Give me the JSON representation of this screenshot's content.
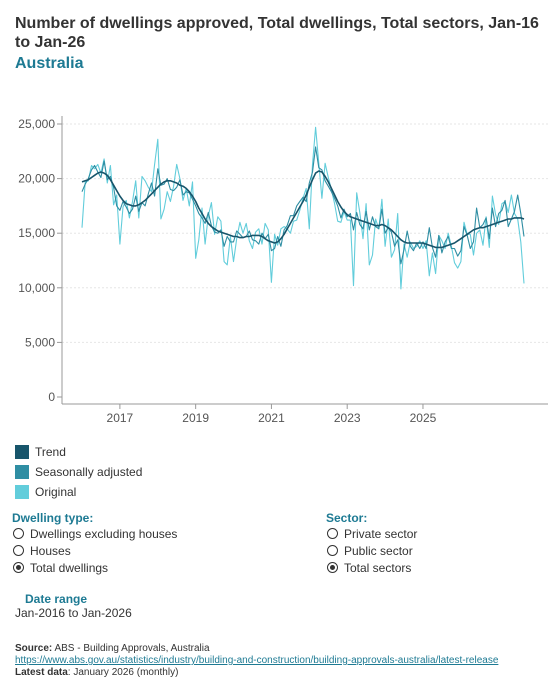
{
  "header": {
    "title": "Number of dwellings approved, Total dwellings, Total sectors, Jan-16 to Jan-26",
    "subtitle": "Australia"
  },
  "legend": [
    {
      "label": "Trend",
      "color": "#17556b"
    },
    {
      "label": "Seasonally adjusted",
      "color": "#2f8ea3"
    },
    {
      "label": "Original",
      "color": "#62cddb"
    }
  ],
  "filters": {
    "dwelling_type": {
      "label": "Dwelling type:",
      "options": [
        "Dwellings excluding houses",
        "Houses",
        "Total dwellings"
      ],
      "selected": "Total dwellings"
    },
    "sector": {
      "label": "Sector:",
      "options": [
        "Private sector",
        "Public sector",
        "Total sectors"
      ],
      "selected": "Total sectors"
    }
  },
  "date_range": {
    "label": "Date range",
    "value": "Jan-2016 to Jan-2026"
  },
  "footer": {
    "source_label": "Source:",
    "source_text": " ABS - Building Approvals, Australia",
    "url": "https://www.abs.gov.au/statistics/industry/building-and-construction/building-approvals-australia/latest-release",
    "latest_label": "Latest data",
    "latest_text": ": January 2026 (monthly)"
  },
  "chart_data": {
    "type": "line",
    "x_start": "2016-01",
    "x_end": "2026-01",
    "ylim": [
      0,
      25000
    ],
    "yticks": [
      0,
      5000,
      10000,
      15000,
      20000,
      25000
    ],
    "ytick_labels": [
      "0",
      "5,000",
      "10,000",
      "15,000",
      "20,000",
      "25,000"
    ],
    "xticks": [
      "2017",
      "2019",
      "2021",
      "2023",
      "2025"
    ],
    "series": [
      {
        "name": "Trend",
        "color": "#17556b",
        "width": 1.6,
        "values": [
          19700,
          19800,
          19900,
          20100,
          20300,
          20500,
          20600,
          20500,
          20300,
          19900,
          19400,
          18900,
          18400,
          18000,
          17700,
          17600,
          17500,
          17500,
          17600,
          17800,
          18000,
          18300,
          18600,
          18900,
          19200,
          19500,
          19700,
          19800,
          19800,
          19700,
          19600,
          19400,
          19300,
          19100,
          18800,
          18400,
          17900,
          17300,
          16800,
          16300,
          15900,
          15600,
          15400,
          15200,
          15100,
          15000,
          14900,
          14800,
          14700,
          14700,
          14600,
          14600,
          14700,
          14700,
          14800,
          14800,
          14800,
          14700,
          14500,
          14300,
          14200,
          14100,
          14200,
          14500,
          14900,
          15400,
          15900,
          16400,
          16900,
          17400,
          17900,
          18500,
          19200,
          19900,
          20500,
          20700,
          20600,
          20200,
          19700,
          19100,
          18500,
          17900,
          17400,
          17000,
          16700,
          16500,
          16400,
          16300,
          16200,
          16100,
          16000,
          15900,
          15800,
          15700,
          15700,
          15800,
          15700,
          15500,
          15300,
          15000,
          14700,
          14400,
          14200,
          14100,
          14100,
          14100,
          14100,
          14100,
          14100,
          14000,
          13900,
          13800,
          13700,
          13700,
          13700,
          13800,
          13900,
          14000,
          14100,
          14300,
          14500,
          14700,
          14900,
          15100,
          15300,
          15400,
          15500,
          15500,
          15600,
          15700,
          15800,
          15900,
          16000,
          16100,
          16200,
          16300,
          16300,
          16400,
          16400,
          16400,
          16300
        ]
      },
      {
        "name": "Seasonally adjusted",
        "color": "#2f8ea3",
        "width": 1.1,
        "values": [
          18800,
          19500,
          20000,
          20800,
          21200,
          20600,
          20100,
          21600,
          19900,
          20200,
          19200,
          17500,
          17100,
          17900,
          17400,
          16800,
          17200,
          18400,
          17000,
          17800,
          17500,
          18600,
          19600,
          18400,
          20900,
          19400,
          19500,
          20000,
          19000,
          18900,
          19200,
          19900,
          18500,
          18800,
          18700,
          18100,
          17500,
          16800,
          16400,
          15900,
          16900,
          15700,
          15100,
          15000,
          15300,
          13800,
          14700,
          14200,
          14200,
          15200,
          14900,
          14600,
          14700,
          15200,
          14400,
          14300,
          14000,
          15000,
          14500,
          14900,
          13400,
          13600,
          14700,
          13800,
          15300,
          15700,
          16600,
          16600,
          17500,
          17900,
          18300,
          17900,
          19600,
          20600,
          22900,
          21000,
          20800,
          19800,
          19300,
          18800,
          18200,
          17500,
          16400,
          17200,
          16500,
          16800,
          15300,
          16900,
          15800,
          15400,
          17000,
          15300,
          16500,
          15600,
          15400,
          17200,
          15000,
          15500,
          15100,
          13800,
          14400,
          12200,
          13500,
          15200,
          13800,
          13400,
          14100,
          13600,
          14200,
          13600,
          15500,
          13700,
          12800,
          14800,
          13200,
          14200,
          14700,
          13600,
          13600,
          12900,
          13400,
          15600,
          14800,
          13600,
          14200,
          17300,
          15500,
          15800,
          16400,
          14500,
          17300,
          15600,
          16800,
          17100,
          18000,
          15600,
          16300,
          17000,
          18500,
          16800,
          14700
        ]
      },
      {
        "name": "Original",
        "color": "#62cddb",
        "width": 1.1,
        "values": [
          15500,
          19700,
          19800,
          21200,
          20900,
          21300,
          20500,
          21800,
          19600,
          21200,
          17600,
          18500,
          14000,
          17400,
          18000,
          16400,
          17900,
          19800,
          16400,
          20200,
          19800,
          19200,
          18800,
          21300,
          23600,
          16300,
          17200,
          18800,
          17900,
          19300,
          21300,
          20000,
          18000,
          19100,
          17500,
          19700,
          12700,
          14400,
          17300,
          14000,
          16600,
          17800,
          14900,
          16500,
          16100,
          12400,
          12100,
          14700,
          12400,
          14500,
          16000,
          15000,
          15900,
          14300,
          13600,
          15100,
          15400,
          14000,
          15900,
          15300,
          10500,
          14900,
          13900,
          15400,
          15600,
          15400,
          15000,
          16100,
          16200,
          17100,
          18200,
          19100,
          15400,
          21300,
          24700,
          21400,
          18200,
          21400,
          20100,
          19000,
          17700,
          16100,
          16000,
          17000,
          16200,
          16200,
          10200,
          18700,
          16900,
          14500,
          17700,
          12100,
          13000,
          16300,
          15400,
          18100,
          13800,
          16300,
          12800,
          13500,
          16800,
          9900,
          14000,
          12800,
          14200,
          13600,
          13800,
          14300,
          13600,
          14300,
          11100,
          13200,
          11300,
          14800,
          14300,
          13600,
          15000,
          13800,
          12300,
          11800,
          12400,
          16000,
          14900,
          14900,
          13000,
          15000,
          15300,
          13900,
          16500,
          13700,
          18400,
          16700,
          15800,
          17700,
          17900,
          16900,
          18500,
          16800,
          16300,
          14200,
          10400
        ]
      }
    ]
  }
}
